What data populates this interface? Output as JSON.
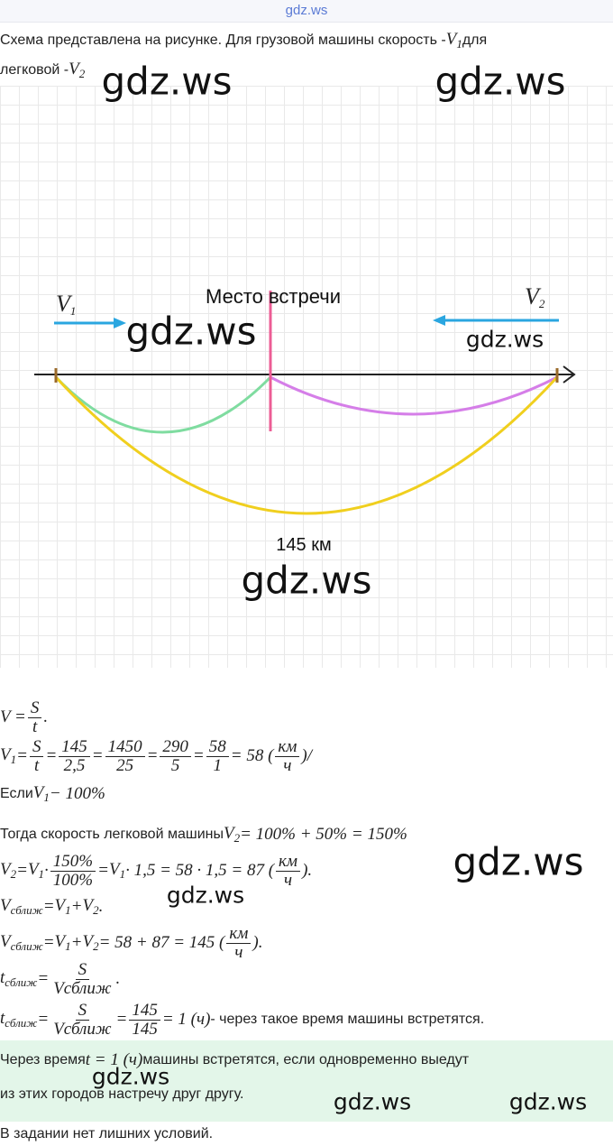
{
  "header": {
    "site": "gdz.ws"
  },
  "intro": [
    [
      "Схема представлена на рисунке. Для грузовой машины скорость - ",
      {
        "base": "V",
        "sub": "1"
      },
      "для"
    ],
    [
      "легковой - ",
      {
        "base": "V",
        "sub": "2"
      }
    ]
  ],
  "diagram": {
    "v1": {
      "base": "V",
      "sub": "1"
    },
    "meeting": "Место встречи",
    "v2": {
      "base": "V",
      "sub": "2"
    },
    "distance": "145 км"
  },
  "solution": [
    [
      "V = ",
      {
        "num": "S",
        "den": "t"
      },
      "."
    ],
    [
      {
        "base": "V",
        "sub": "1"
      },
      " = ",
      {
        "num": "S",
        "den": "t"
      },
      " = ",
      {
        "num": "145",
        "den": "2,5"
      },
      " = ",
      {
        "num": "1450",
        "den": "25"
      },
      " = ",
      {
        "num": "290",
        "den": "5"
      },
      " = ",
      {
        "num": "58",
        "den": "1"
      },
      " = 58 (",
      {
        "num": "км",
        "den": "ч"
      },
      ")/"
    ],
    [
      {
        "text": "Если "
      },
      {
        "base": "V",
        "sub": "1"
      },
      " − 100%"
    ],
    [
      {
        "text": "Тогда скорость легковой машины "
      },
      {
        "base": "V",
        "sub": "2"
      },
      " = 100% + 50% = 150%"
    ],
    [
      {
        "base": "V",
        "sub": "2"
      },
      " = ",
      {
        "base": "V",
        "sub": "1"
      },
      " · ",
      {
        "num": "150%",
        "den": "100%"
      },
      " = ",
      {
        "base": "V",
        "sub": "1"
      },
      " · 1,5 = 58 · 1,5 = 87 (",
      {
        "num": "км",
        "den": "ч"
      },
      ")."
    ],
    [
      {
        "base": "V",
        "sub": "сближ"
      },
      " = ",
      {
        "base": "V",
        "sub": "1"
      },
      " + ",
      {
        "base": "V",
        "sub": "2"
      },
      "."
    ],
    [
      {
        "base": "V",
        "sub": "сближ"
      },
      " = ",
      {
        "base": "V",
        "sub": "1"
      },
      " + ",
      {
        "base": "V",
        "sub": "2"
      },
      " = 58 + 87 = 145 (",
      {
        "num": "км",
        "den": "ч"
      },
      ")."
    ],
    [
      {
        "base": "t",
        "sub": "сближ"
      },
      " = ",
      {
        "num": "S",
        "den": "Vсближ"
      },
      "."
    ],
    [
      {
        "base": "t",
        "sub": "сближ"
      },
      " = ",
      {
        "num": "S",
        "den": "Vсближ"
      },
      " = ",
      {
        "num": "145",
        "den": "145"
      },
      " = 1 (ч)",
      {
        "text": " - через такое время машины встретятся."
      }
    ]
  ],
  "answer": [
    [
      {
        "text": "Через время "
      },
      "t = 1 (ч)",
      {
        "text": " машины встретятся, если одновременно выедут"
      }
    ],
    [
      {
        "text": "из этих городов настречу друг другу."
      }
    ]
  ],
  "note": "В задании нет лишних условий.",
  "watermarks": [
    "gdz.ws",
    "gdz.ws",
    "gdz.ws",
    "gdz.ws",
    "gdz.ws",
    "gdz.ws",
    "gdz.ws",
    "gdz.ws",
    "gdz.ws",
    "gdz.ws"
  ]
}
